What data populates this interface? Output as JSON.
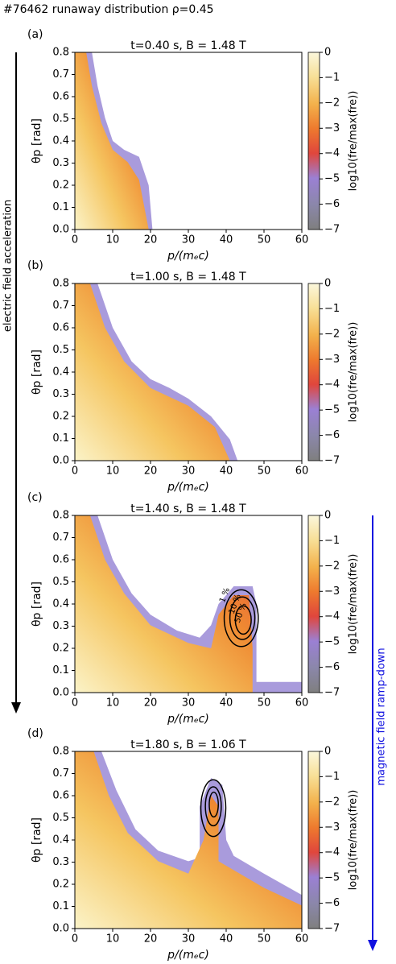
{
  "figure": {
    "title": "#76462     runaway distribution ρ=0.45",
    "left_arrow_label": "electric field acceleration",
    "right_arrow_label": "magnetic field ramp-down"
  },
  "chart_data": [
    {
      "type": "heatmap",
      "panel": "(a)",
      "title": "t=0.40 s, B = 1.48 T",
      "xlabel": "p/(mₑc)",
      "ylabel": "θp [rad]",
      "xlim": [
        0,
        60
      ],
      "ylim": [
        0,
        0.8
      ],
      "xticks": [
        0,
        10,
        20,
        30,
        40,
        50,
        60
      ],
      "yticks": [
        {
          "value": 0,
          "label": "0.0"
        },
        0.1,
        0.2,
        0.3,
        0.4,
        0.5,
        0.6,
        0.7,
        0.8
      ],
      "colorbar": {
        "label": "log10(fre/max(fre))",
        "lim": [
          -7,
          0
        ],
        "ticks": [
          0,
          {
            "value": -1,
            "label": "−1"
          },
          {
            "value": -2,
            "label": "−2"
          },
          {
            "value": -3,
            "label": "−3"
          },
          {
            "value": -4,
            "label": "−4"
          },
          {
            "value": -5,
            "label": "−5"
          },
          {
            "value": -6,
            "label": "−6"
          },
          {
            "value": -7,
            "label": "−7"
          }
        ]
      }
    },
    {
      "type": "heatmap",
      "panel": "(b)",
      "title": "t=1.00 s, B = 1.48 T",
      "xlabel": "p/(mₑc)",
      "ylabel": "θp [rad]",
      "xlim": [
        0,
        60
      ],
      "ylim": [
        0,
        0.8
      ],
      "xticks": [
        0,
        10,
        20,
        30,
        40,
        50,
        60
      ],
      "yticks": [
        {
          "value": 0,
          "label": "0.0"
        },
        0.1,
        0.2,
        0.3,
        0.4,
        0.5,
        0.6,
        0.7,
        0.8
      ],
      "colorbar": {
        "label": "log10(fre/max(fre))",
        "lim": [
          -7,
          0
        ],
        "ticks": [
          0,
          {
            "value": -1,
            "label": "−1"
          },
          {
            "value": -2,
            "label": "−2"
          },
          {
            "value": -3,
            "label": "−3"
          },
          {
            "value": -4,
            "label": "−4"
          },
          {
            "value": -5,
            "label": "−5"
          },
          {
            "value": -6,
            "label": "−6"
          },
          {
            "value": -7,
            "label": "−7"
          }
        ]
      }
    },
    {
      "type": "heatmap",
      "panel": "(c)",
      "title": "t=1.40 s, B = 1.48 T",
      "xlabel": "p/(mₑc)",
      "ylabel": "θp [rad]",
      "xlim": [
        0,
        60
      ],
      "ylim": [
        0,
        0.8
      ],
      "xticks": [
        0,
        10,
        20,
        30,
        40,
        50,
        60
      ],
      "yticks": [
        {
          "value": 0,
          "label": "0.0"
        },
        0.1,
        0.2,
        0.3,
        0.4,
        0.5,
        0.6,
        0.7,
        0.8
      ],
      "annotations": [
        "1 %",
        "10 %",
        "50 %"
      ],
      "colorbar": {
        "label": "log10(fre/max(fre))",
        "lim": [
          -7,
          0
        ],
        "ticks": [
          0,
          {
            "value": -1,
            "label": "−1"
          },
          {
            "value": -2,
            "label": "−2"
          },
          {
            "value": -3,
            "label": "−3"
          },
          {
            "value": -4,
            "label": "−4"
          },
          {
            "value": -5,
            "label": "−5"
          },
          {
            "value": -6,
            "label": "−6"
          },
          {
            "value": -7,
            "label": "−7"
          }
        ]
      }
    },
    {
      "type": "heatmap",
      "panel": "(d)",
      "title": "t=1.80 s, B = 1.06 T",
      "xlabel": "p/(mₑc)",
      "ylabel": "θp [rad]",
      "xlim": [
        0,
        60
      ],
      "ylim": [
        0,
        0.8
      ],
      "xticks": [
        0,
        10,
        20,
        30,
        40,
        50,
        60
      ],
      "yticks": [
        {
          "value": 0,
          "label": "0.0"
        },
        0.1,
        0.2,
        0.3,
        0.4,
        0.5,
        0.6,
        0.7,
        0.8
      ],
      "colorbar": {
        "label": "log10(fre/max(fre))",
        "lim": [
          -7,
          0
        ],
        "ticks": [
          0,
          {
            "value": -1,
            "label": "−1"
          },
          {
            "value": -2,
            "label": "−2"
          },
          {
            "value": -3,
            "label": "−3"
          },
          {
            "value": -4,
            "label": "−4"
          },
          {
            "value": -5,
            "label": "−5"
          },
          {
            "value": -6,
            "label": "−6"
          },
          {
            "value": -7,
            "label": "−7"
          }
        ]
      }
    }
  ]
}
